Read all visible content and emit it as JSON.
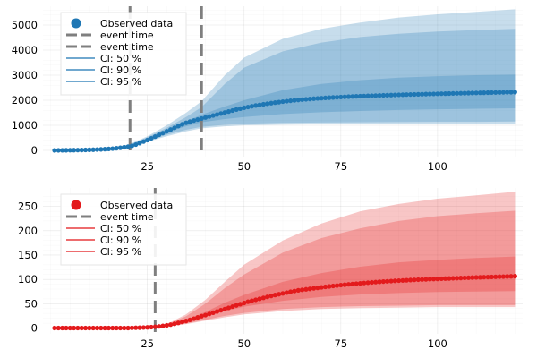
{
  "chart_data": [
    {
      "type": "area",
      "color": "#1f77b4",
      "xlim": [
        -2,
        122
      ],
      "ylim": [
        -250,
        5750
      ],
      "xticks": [
        25,
        50,
        75,
        100
      ],
      "yticks": [
        0,
        1000,
        2000,
        3000,
        4000,
        5000
      ],
      "xtick_labels": [
        "25",
        "50",
        "75",
        "100"
      ],
      "ytick_labels": [
        "0",
        "1000",
        "2000",
        "3000",
        "4000",
        "5000"
      ],
      "grid": true,
      "legend_position": "top-left",
      "event_times": [
        20.5,
        39
      ],
      "legend": [
        {
          "label": "Observed data",
          "kind": "marker"
        },
        {
          "label": "event time",
          "kind": "dash"
        },
        {
          "label": "event time",
          "kind": "dash"
        },
        {
          "label": "CI: 50 %",
          "kind": "line"
        },
        {
          "label": "CI: 90 %",
          "kind": "line"
        },
        {
          "label": "CI: 95 %",
          "kind": "line"
        }
      ],
      "bands_x": [
        1,
        10,
        15,
        20,
        25,
        30,
        35,
        39,
        45,
        50,
        60,
        70,
        80,
        90,
        100,
        110,
        120
      ],
      "band95": {
        "lower": [
          0,
          10,
          35,
          130,
          350,
          560,
          760,
          880,
          960,
          1000,
          1030,
          1040,
          1050,
          1060,
          1060,
          1060,
          1060
        ],
        "upper": [
          0,
          30,
          95,
          220,
          560,
          1000,
          1500,
          1960,
          3000,
          3700,
          4450,
          4850,
          5100,
          5300,
          5430,
          5530,
          5630
        ]
      },
      "band90": {
        "lower": [
          0,
          12,
          40,
          140,
          380,
          620,
          820,
          940,
          1020,
          1060,
          1100,
          1110,
          1120,
          1130,
          1140,
          1140,
          1150
        ],
        "upper": [
          0,
          25,
          80,
          200,
          520,
          900,
          1330,
          1720,
          2650,
          3300,
          3950,
          4300,
          4520,
          4650,
          4740,
          4800,
          4850
        ]
      },
      "band50": {
        "lower": [
          0,
          15,
          55,
          165,
          440,
          720,
          960,
          1120,
          1250,
          1330,
          1450,
          1520,
          1570,
          1610,
          1640,
          1660,
          1680
        ],
        "upper": [
          0,
          20,
          65,
          185,
          490,
          820,
          1160,
          1420,
          1750,
          2000,
          2400,
          2650,
          2800,
          2900,
          2960,
          3000,
          3020
        ]
      },
      "series": [
        {
          "x": [
            1,
            2,
            3,
            4,
            5,
            6,
            7,
            8,
            9,
            10,
            11,
            12,
            13,
            14,
            15,
            16,
            17,
            18,
            19,
            20,
            21,
            22,
            23,
            24,
            25,
            26,
            27,
            28,
            29,
            30,
            31,
            32,
            33,
            34,
            35,
            36,
            37,
            38,
            39,
            40,
            41,
            42,
            43,
            44,
            45,
            46,
            47,
            48,
            49,
            50,
            51,
            52,
            53,
            54,
            55,
            56,
            57,
            58,
            59,
            60,
            61,
            62,
            63,
            64,
            65,
            66,
            67,
            68,
            69,
            70,
            71,
            72,
            73,
            74,
            75,
            76,
            77,
            78,
            79,
            80,
            81,
            82,
            83,
            84,
            85,
            86,
            87,
            88,
            89,
            90,
            91,
            92,
            93,
            94,
            95,
            96,
            97,
            98,
            99,
            100,
            101,
            102,
            103,
            104,
            105,
            106,
            107,
            108,
            109,
            110,
            111,
            112,
            113,
            114,
            115,
            116,
            117,
            118,
            119,
            120
          ],
          "values": [
            0,
            1,
            2,
            4,
            6,
            8,
            11,
            14,
            18,
            22,
            27,
            33,
            40,
            48,
            58,
            70,
            85,
            103,
            125,
            150,
            180,
            230,
            290,
            350,
            410,
            480,
            550,
            620,
            690,
            760,
            830,
            900,
            970,
            1040,
            1100,
            1150,
            1190,
            1230,
            1270,
            1310,
            1350,
            1390,
            1430,
            1470,
            1510,
            1550,
            1590,
            1630,
            1665,
            1700,
            1730,
            1760,
            1790,
            1815,
            1840,
            1862,
            1884,
            1905,
            1925,
            1945,
            1962,
            1979,
            1995,
            2010,
            2024,
            2037,
            2050,
            2062,
            2073,
            2083,
            2093,
            2102,
            2111,
            2119,
            2127,
            2135,
            2142,
            2149,
            2156,
            2162,
            2168,
            2174,
            2180,
            2186,
            2191,
            2196,
            2201,
            2206,
            2211,
            2216,
            2220,
            2225,
            2229,
            2233,
            2237,
            2241,
            2245,
            2249,
            2253,
            2257,
            2261,
            2264,
            2268,
            2272,
            2275,
            2279,
            2282,
            2286,
            2289,
            2293,
            2296,
            2299,
            2303,
            2306,
            2309,
            2312,
            2315,
            2318,
            2321,
            2324
          ]
        }
      ]
    },
    {
      "type": "area",
      "color": "#e31a1c",
      "xlim": [
        -2,
        122
      ],
      "ylim": [
        -12,
        288
      ],
      "xticks": [
        25,
        50,
        75,
        100
      ],
      "yticks": [
        0,
        50,
        100,
        150,
        200,
        250
      ],
      "xtick_labels": [
        "25",
        "50",
        "75",
        "100"
      ],
      "ytick_labels": [
        "0",
        "50",
        "100",
        "150",
        "200",
        "250"
      ],
      "grid": true,
      "legend_position": "top-left",
      "event_times": [
        27
      ],
      "legend": [
        {
          "label": "Observed data",
          "kind": "marker"
        },
        {
          "label": "event time",
          "kind": "dash"
        },
        {
          "label": "CI: 50 %",
          "kind": "line"
        },
        {
          "label": "CI: 90 %",
          "kind": "line"
        },
        {
          "label": "CI: 95 %",
          "kind": "line"
        }
      ],
      "bands_x": [
        1,
        10,
        20,
        25,
        27,
        30,
        35,
        40,
        45,
        50,
        60,
        70,
        80,
        90,
        100,
        110,
        120
      ],
      "band95": {
        "lower": [
          0,
          0,
          0.5,
          1,
          1.5,
          3,
          8,
          15,
          22,
          28,
          35,
          39,
          41,
          42,
          43,
          43,
          43
        ],
        "upper": [
          0,
          0,
          1,
          2,
          3,
          8,
          28,
          58,
          95,
          130,
          180,
          215,
          240,
          255,
          266,
          273,
          280
        ]
      },
      "band90": {
        "lower": [
          0,
          0,
          0.5,
          1,
          1.5,
          3.5,
          9,
          17,
          25,
          31,
          39,
          43,
          45,
          46,
          47,
          47,
          47
        ],
        "upper": [
          0,
          0,
          1,
          2,
          3,
          7,
          24,
          50,
          82,
          110,
          155,
          185,
          205,
          220,
          230,
          236,
          241
        ]
      },
      "band50": {
        "lower": [
          0,
          0,
          0.5,
          1,
          2,
          4.5,
          12,
          24,
          35,
          44,
          56,
          64,
          69,
          72,
          74,
          75,
          76
        ],
        "upper": [
          0,
          0,
          1,
          2,
          3,
          6,
          17,
          33,
          52,
          68,
          95,
          113,
          126,
          135,
          140,
          144,
          147
        ]
      },
      "series": [
        {
          "x": [
            1,
            2,
            3,
            4,
            5,
            6,
            7,
            8,
            9,
            10,
            11,
            12,
            13,
            14,
            15,
            16,
            17,
            18,
            19,
            20,
            21,
            22,
            23,
            24,
            25,
            26,
            27,
            28,
            29,
            30,
            31,
            32,
            33,
            34,
            35,
            36,
            37,
            38,
            39,
            40,
            41,
            42,
            43,
            44,
            45,
            46,
            47,
            48,
            49,
            50,
            51,
            52,
            53,
            54,
            55,
            56,
            57,
            58,
            59,
            60,
            61,
            62,
            63,
            64,
            65,
            66,
            67,
            68,
            69,
            70,
            71,
            72,
            73,
            74,
            75,
            76,
            77,
            78,
            79,
            80,
            81,
            82,
            83,
            84,
            85,
            86,
            87,
            88,
            89,
            90,
            91,
            92,
            93,
            94,
            95,
            96,
            97,
            98,
            99,
            100,
            101,
            102,
            103,
            104,
            105,
            106,
            107,
            108,
            109,
            110,
            111,
            112,
            113,
            114,
            115,
            116,
            117,
            118,
            119,
            120
          ],
          "values": [
            0,
            0,
            0,
            0,
            0,
            0,
            0,
            0,
            0,
            0,
            0,
            0,
            0,
            0,
            0,
            0,
            0,
            0,
            0,
            0,
            0.3,
            0.5,
            0.7,
            1,
            1.3,
            1.8,
            2.5,
            3.3,
            4.3,
            5.5,
            7,
            8.7,
            10.5,
            12.5,
            14.5,
            16.8,
            19.2,
            21.8,
            24.3,
            26.5,
            29,
            31.5,
            34,
            36.5,
            39,
            41.5,
            44,
            46.5,
            49,
            51.5,
            54,
            56,
            58,
            60,
            62,
            64,
            66,
            67.8,
            69.5,
            71.2,
            72.8,
            74.5,
            76,
            77.5,
            78.5,
            79.5,
            80.5,
            81.6,
            82.6,
            83.6,
            84.6,
            85.5,
            86.4,
            87.3,
            88.2,
            89,
            89.8,
            90.5,
            91.2,
            91.9,
            92.6,
            93.2,
            93.8,
            94.4,
            95,
            95.5,
            96,
            96.5,
            97,
            97.4,
            97.8,
            98.2,
            98.6,
            99,
            99.4,
            99.7,
            100,
            100.4,
            100.7,
            101,
            101.3,
            101.6,
            101.9,
            102.2,
            102.5,
            102.8,
            103.1,
            103.4,
            103.7,
            104,
            104.2,
            104.5,
            104.7,
            105,
            105.2,
            105.5,
            105.7,
            106,
            106.2,
            106.5
          ]
        }
      ]
    }
  ]
}
